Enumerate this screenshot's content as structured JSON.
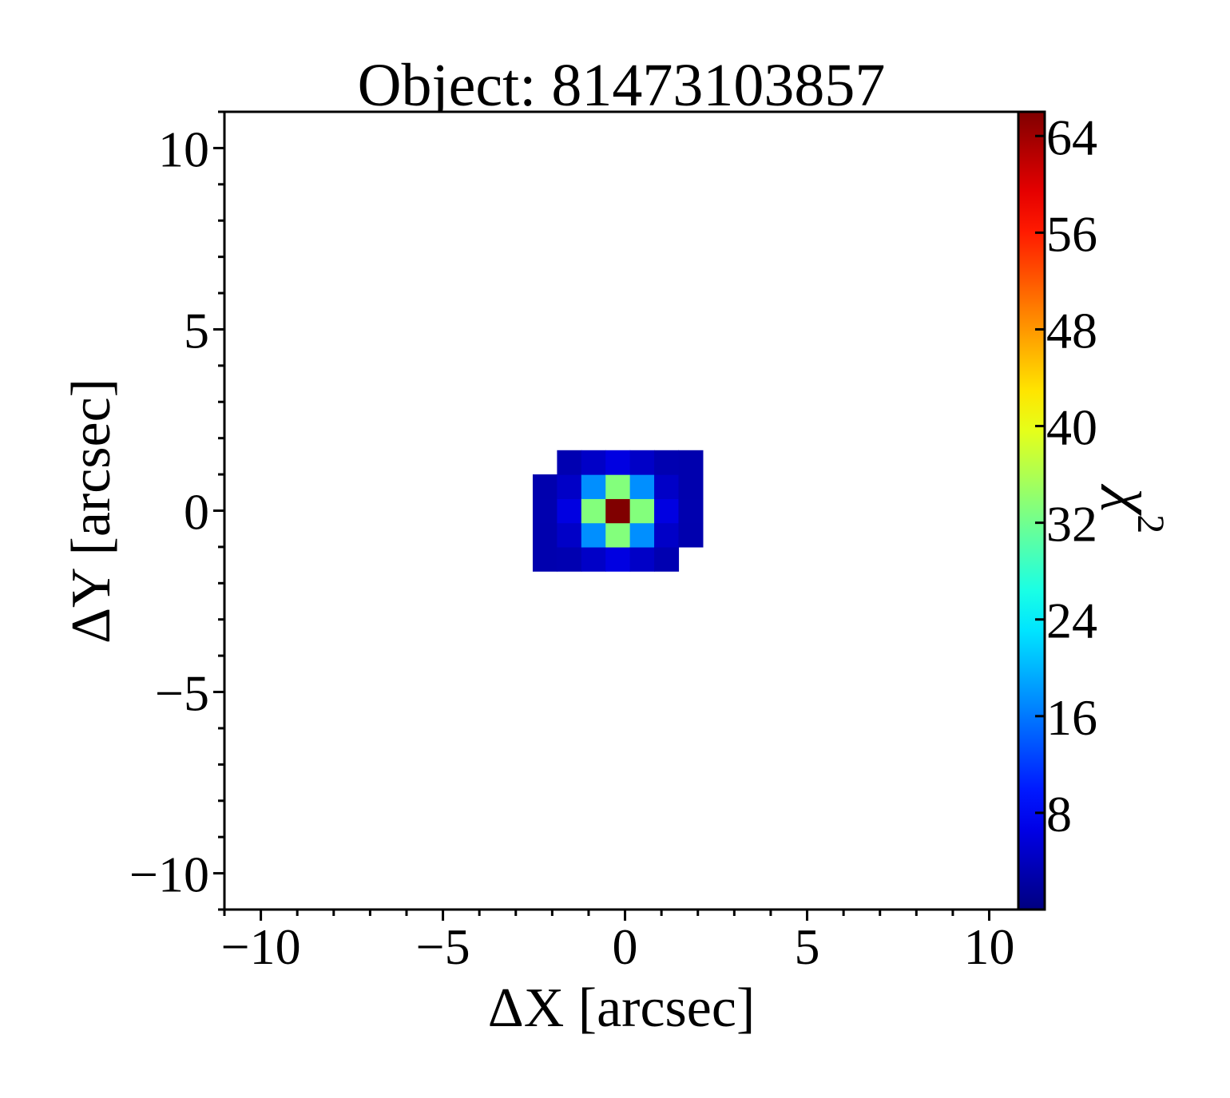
{
  "chart_data": {
    "type": "heatmap",
    "title": "Object: 81473103857",
    "xlabel": "ΔX [arcsec]",
    "ylabel": "ΔY [arcsec]",
    "colorbar_label": "χ",
    "colorbar_label_superscript": "2",
    "xlim": [
      -11.0,
      10.8
    ],
    "ylim": [
      -11.0,
      11.0
    ],
    "xticks": [
      -10,
      -5,
      0,
      5,
      10
    ],
    "xtick_labels": [
      "−10",
      "−5",
      "0",
      "5",
      "10"
    ],
    "yticks": [
      -10,
      -5,
      0,
      5,
      10
    ],
    "ytick_labels": [
      "−10",
      "−5",
      "0",
      "5",
      "10"
    ],
    "minor_tick_step": 1,
    "colorbar_range": [
      0,
      66
    ],
    "colorbar_ticks": [
      8,
      16,
      24,
      32,
      40,
      48,
      56,
      64
    ],
    "colorbar_tick_labels": [
      "8",
      "16",
      "24",
      "32",
      "40",
      "48",
      "56",
      "64"
    ],
    "colormap": "jet",
    "pixel_size_arcsec": 0.667,
    "source_peak": {
      "center": [
        -0.2,
        0.0
      ],
      "peak_chi2": 66,
      "background_chi2": 3,
      "gaussian_sigma_arcsec": 0.55,
      "footprint_ellipse": {
        "semi_major": 2.75,
        "semi_minor": 1.85,
        "position_angle_deg": 18
      }
    },
    "grid": false
  },
  "colors": {
    "frame": "#000000",
    "background": "#ffffff",
    "colormap_stops": [
      "#00008f",
      "#0000ff",
      "#0080ff",
      "#00ffff",
      "#80ff80",
      "#ffff00",
      "#ff8000",
      "#ff0000",
      "#800000"
    ]
  }
}
